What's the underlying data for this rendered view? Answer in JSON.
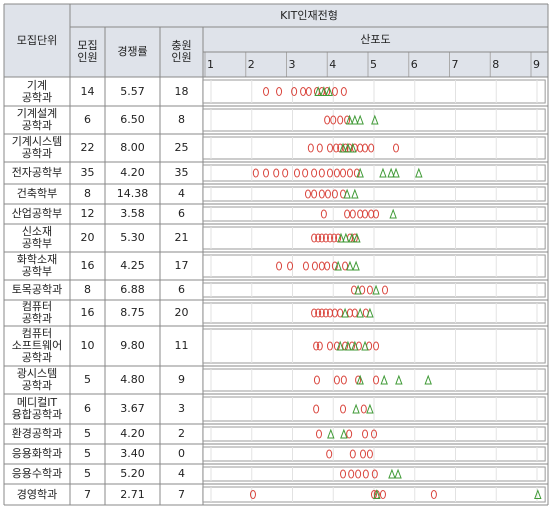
{
  "table": {
    "title": "KIT인재전형",
    "columns": [
      "모집단위",
      "모집\n인원",
      "경쟁률",
      "충원\n인원",
      "산포도"
    ],
    "scale": {
      "xlim": [
        0.8,
        9.2
      ],
      "ticks": [
        1,
        2,
        3,
        4,
        5,
        6,
        7,
        8,
        9
      ]
    },
    "rows": [
      {
        "name": "기계\n공학과",
        "count": "14",
        "ratio": "5.57",
        "filled": "18",
        "circles": [
          2.35,
          2.67,
          3.04,
          3.26,
          3.4,
          3.6,
          3.72,
          3.85,
          4.04,
          4.26
        ],
        "triangles": [
          3.63,
          3.77,
          3.9
        ]
      },
      {
        "name": "기계설계\n공학과",
        "count": "6",
        "ratio": "6.50",
        "filled": "8",
        "circles": [
          3.85,
          4.0,
          4.17,
          4.34
        ],
        "triangles": [
          4.4,
          4.53,
          4.66,
          5.02
        ]
      },
      {
        "name": "기계시스템\n공학과",
        "count": "22",
        "ratio": "8.00",
        "filled": "25",
        "circles": [
          3.45,
          3.67,
          3.92,
          4.07,
          4.17,
          4.3,
          4.4,
          4.53,
          4.66,
          4.78,
          4.93,
          5.54
        ],
        "triangles": [
          4.24,
          4.36,
          4.48
        ]
      },
      {
        "name": "전자공학부",
        "count": "35",
        "ratio": "4.20",
        "filled": "35",
        "circles": [
          2.1,
          2.35,
          2.6,
          2.82,
          3.11,
          3.31,
          3.53,
          3.72,
          3.92,
          4.09,
          4.24,
          4.41,
          4.58
        ],
        "triangles": [
          4.66,
          5.22,
          5.42,
          5.54,
          6.1
        ]
      },
      {
        "name": "건축학부",
        "count": "8",
        "ratio": "14.38",
        "filled": "4",
        "circles": [
          3.38,
          3.53,
          3.72,
          3.87,
          4.04,
          4.24
        ],
        "triangles": [
          4.34,
          4.53
        ]
      },
      {
        "name": "산업공학부",
        "count": "12",
        "ratio": "3.58",
        "filled": "6",
        "circles": [
          3.77,
          4.34,
          4.48,
          4.66,
          4.78,
          4.93,
          5.05
        ],
        "triangles": [
          5.47
        ]
      },
      {
        "name": "신소재\n공학부",
        "count": "20",
        "ratio": "5.30",
        "filled": "21",
        "circles": [
          3.53,
          3.63,
          3.72,
          3.82,
          3.92,
          4.02,
          4.12,
          4.41,
          4.53
        ],
        "triangles": [
          4.19,
          4.31,
          4.46,
          4.58
        ]
      },
      {
        "name": "화학소재\n공학부",
        "count": "16",
        "ratio": "4.25",
        "filled": "17",
        "circles": [
          2.67,
          2.94,
          3.33,
          3.55,
          3.72,
          3.85,
          4.04,
          4.29
        ],
        "triangles": [
          4.12,
          4.41,
          4.56
        ]
      },
      {
        "name": "토목공학과",
        "count": "8",
        "ratio": "6.88",
        "filled": "6",
        "circles": [
          4.51,
          4.71,
          4.9,
          5.27
        ],
        "triangles": [
          4.61,
          5.05
        ]
      },
      {
        "name": "컴퓨터\n공학과",
        "count": "16",
        "ratio": "8.75",
        "filled": "20",
        "circles": [
          3.53,
          3.63,
          3.72,
          3.82,
          3.92,
          4.04,
          4.17,
          4.41,
          4.53,
          4.8
        ],
        "triangles": [
          4.29,
          4.66,
          4.9
        ]
      },
      {
        "name": "컴퓨터\n소프트웨어\n공학과",
        "count": "10",
        "ratio": "9.80",
        "filled": "11",
        "circles": [
          3.58,
          3.67,
          3.92,
          4.09,
          4.29,
          4.46,
          4.63,
          4.88,
          5.05
        ],
        "triangles": [
          4.17,
          4.36,
          4.53,
          4.78
        ]
      },
      {
        "name": "광시스템\n공학과",
        "count": "5",
        "ratio": "4.80",
        "filled": "9",
        "circles": [
          3.6,
          4.09,
          4.26,
          4.61,
          5.05
        ],
        "triangles": [
          4.66,
          5.25,
          5.61,
          6.33
        ]
      },
      {
        "name": "메디컬IT\n융합공학과",
        "count": "6",
        "ratio": "3.67",
        "filled": "3",
        "circles": [
          3.58,
          4.24,
          4.75
        ],
        "triangles": [
          4.56,
          4.9
        ]
      },
      {
        "name": "환경공학과",
        "count": "5",
        "ratio": "4.20",
        "filled": "2",
        "circles": [
          3.65,
          4.39,
          4.78,
          5.0
        ],
        "triangles": [
          3.94,
          4.26
        ]
      },
      {
        "name": "응용화학과",
        "count": "5",
        "ratio": "3.40",
        "filled": "0",
        "circles": [
          3.9,
          4.48,
          4.73,
          4.9
        ],
        "triangles": []
      },
      {
        "name": "응용수학과",
        "count": "5",
        "ratio": "5.20",
        "filled": "4",
        "circles": [
          4.24,
          4.44,
          4.61,
          4.8,
          5.02
        ],
        "triangles": [
          5.44,
          5.59
        ]
      },
      {
        "name": "경영학과",
        "count": "7",
        "ratio": "2.71",
        "filled": "7",
        "circles": [
          2.03,
          5.0,
          5.07,
          5.22,
          6.47
        ],
        "triangles": [
          5.07,
          9.02
        ]
      }
    ]
  }
}
